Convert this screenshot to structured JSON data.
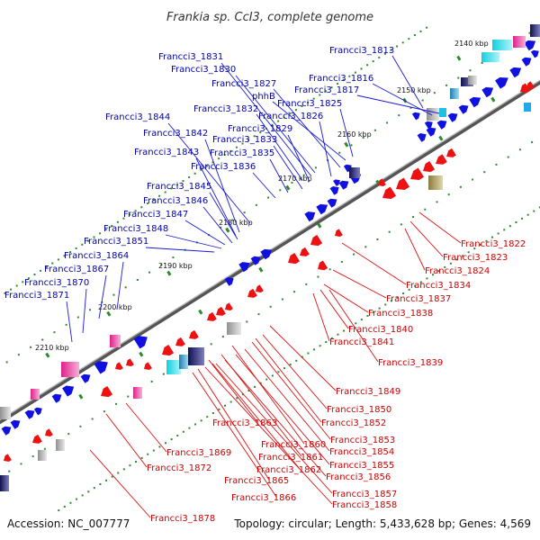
{
  "title": "Frankia sp. CcI3, complete genome",
  "accession": "Accession: NC_007777",
  "topology": "Topology: circular; Length: 5,433,628 bp; Genes: 4,569",
  "colors": {
    "forward": "#1010e0",
    "reverse": "#ee1111",
    "backbone": "#707070",
    "tick": "#2f8a2f",
    "rna_magenta": "#e0208a",
    "rna_cyan": "#20d8e0",
    "pseudo_gray": "#b0b0b0",
    "misc_olive": "#b0a060"
  },
  "kbp_labels": [
    "2140 kbp",
    "2150 kbp",
    "2160 kbp",
    "2170 kbp",
    "2180 kbp",
    "2190 kbp",
    "2200 kbp",
    "2210 kbp"
  ],
  "blue_labels": [
    "Francci3_1813",
    "Francci3_1831",
    "Francci3_1830",
    "Francci3_1816",
    "Francci3_1827",
    "Francci3_1817",
    "phhB",
    "Francci3_1825",
    "Francci3_1832",
    "Francci3_1826",
    "Francci3_1844",
    "Francci3_1829",
    "Francci3_1842",
    "Francci3_1833",
    "Francci3_1843",
    "Francci3_1835",
    "Francci3_1836",
    "Francci3_1845",
    "Francci3_1846",
    "Francci3_1847",
    "Francci3_1848",
    "Francci3_1851",
    "Francci3_1864",
    "Francci3_1867",
    "Francci3_1870",
    "Francci3_1871"
  ],
  "red_labels": [
    "Francci3_1822",
    "Francci3_1823",
    "Francci3_1824",
    "Francci3_1834",
    "Francci3_1837",
    "Francci3_1838",
    "Francci3_1840",
    "Francci3_1841",
    "Francci3_1839",
    "Francci3_1849",
    "Francci3_1850",
    "Francci3_1863",
    "Francci3_1852",
    "Francci3_1853",
    "Francci3_1860",
    "Francci3_1854",
    "Francci3_1869",
    "Francci3_1861",
    "Francci3_1855",
    "Francci3_1872",
    "Francci3_1862",
    "Francci3_1856",
    "Francci3_1865",
    "Francci3_1857",
    "Francci3_1866",
    "Francci3_1858",
    "Francci3_1878"
  ]
}
